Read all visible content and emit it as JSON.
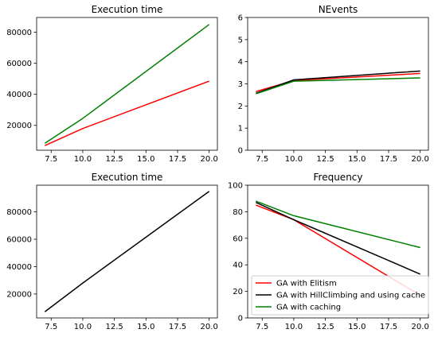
{
  "colors": {
    "GA with Elitism": "#ff0000",
    "GA with HillClimbing and using cache": "#000000",
    "GA with caching": "#008000"
  },
  "legend": {
    "placement": "lower-right of bottom-right subplot",
    "entries": [
      "GA with Elitism",
      "GA with HillClimbing and using cache",
      "GA with caching"
    ]
  },
  "chart_data": [
    {
      "type": "line",
      "title": "Execution time",
      "xlim": [
        6.35,
        20.65
      ],
      "ylim": [
        4000,
        89500
      ],
      "xticks": [
        7.5,
        10.0,
        12.5,
        15.0,
        17.5,
        20.0
      ],
      "xtick_labels": [
        "7.5",
        "10.0",
        "12.5",
        "15.0",
        "17.5",
        "20.0"
      ],
      "yticks": [
        20000,
        40000,
        60000,
        80000
      ],
      "ytick_labels": [
        "20000",
        "40000",
        "60000",
        "80000"
      ],
      "grid": false,
      "series": [
        {
          "name": "GA with Elitism",
          "x": [
            7,
            10,
            20
          ],
          "y": [
            7000,
            18000,
            48500
          ]
        },
        {
          "name": "GA with caching",
          "x": [
            7,
            10,
            20
          ],
          "y": [
            8500,
            24500,
            85000
          ]
        }
      ]
    },
    {
      "type": "line",
      "title": "NEvents",
      "xlim": [
        6.35,
        20.65
      ],
      "ylim": [
        0,
        6
      ],
      "xticks": [
        7.5,
        10.0,
        12.5,
        15.0,
        17.5,
        20.0
      ],
      "xtick_labels": [
        "7.5",
        "10.0",
        "12.5",
        "15.0",
        "17.5",
        "20.0"
      ],
      "yticks": [
        0,
        1,
        2,
        3,
        4,
        5,
        6
      ],
      "ytick_labels": [
        "0",
        "1",
        "2",
        "3",
        "4",
        "5",
        "6"
      ],
      "grid": false,
      "series": [
        {
          "name": "GA with Elitism",
          "x": [
            7,
            10,
            20
          ],
          "y": [
            2.65,
            3.15,
            3.47
          ]
        },
        {
          "name": "GA with HillClimbing and using cache",
          "x": [
            7,
            10,
            20
          ],
          "y": [
            2.57,
            3.18,
            3.58
          ]
        },
        {
          "name": "GA with caching",
          "x": [
            7,
            10,
            20
          ],
          "y": [
            2.55,
            3.12,
            3.27
          ]
        }
      ]
    },
    {
      "type": "line",
      "title": "Execution time",
      "xlim": [
        6.35,
        20.65
      ],
      "ylim": [
        2500,
        99500
      ],
      "xticks": [
        7.5,
        10.0,
        12.5,
        15.0,
        17.5,
        20.0
      ],
      "xtick_labels": [
        "7.5",
        "10.0",
        "12.5",
        "15.0",
        "17.5",
        "20.0"
      ],
      "yticks": [
        20000,
        40000,
        60000,
        80000
      ],
      "ytick_labels": [
        "20000",
        "40000",
        "60000",
        "80000"
      ],
      "grid": false,
      "series": [
        {
          "name": "GA with HillClimbing and using cache",
          "x": [
            7,
            10,
            20
          ],
          "y": [
            7000,
            28000,
            95000
          ]
        }
      ]
    },
    {
      "type": "line",
      "title": "Frequency",
      "xlim": [
        6.35,
        20.65
      ],
      "ylim": [
        0,
        100
      ],
      "xticks": [
        7.5,
        10.0,
        12.5,
        15.0,
        17.5,
        20.0
      ],
      "xtick_labels": [
        "7.5",
        "10.0",
        "12.5",
        "15.0",
        "17.5",
        "20.0"
      ],
      "yticks": [
        0,
        20,
        40,
        60,
        80,
        100
      ],
      "ytick_labels": [
        "0",
        "20",
        "40",
        "60",
        "80",
        "100"
      ],
      "grid": false,
      "series": [
        {
          "name": "GA with Elitism",
          "x": [
            7,
            10,
            20
          ],
          "y": [
            85,
            74,
            17
          ]
        },
        {
          "name": "GA with HillClimbing and using cache",
          "x": [
            7,
            10,
            20
          ],
          "y": [
            87,
            74,
            33
          ]
        },
        {
          "name": "GA with caching",
          "x": [
            7,
            10,
            20
          ],
          "y": [
            88,
            77,
            53
          ]
        }
      ]
    }
  ]
}
